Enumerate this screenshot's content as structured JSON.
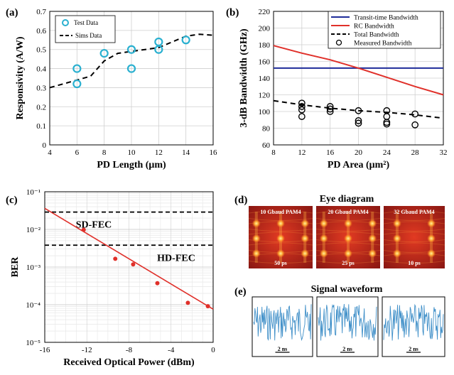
{
  "panels": {
    "a": "(a)",
    "b": "(b)",
    "c": "(c)",
    "d": "(d)",
    "e": "(e)"
  },
  "eye": {
    "title": "Eye diagram",
    "frames": [
      {
        "label": "10 Gbaud PAM4",
        "time": "50 ps",
        "eyes": 3
      },
      {
        "label": "20 Gbaud PAM4",
        "time": "25 ps",
        "eyes": 3
      },
      {
        "label": "32 Gbaud PAM4",
        "time": "10 ps",
        "eyes": 2
      }
    ]
  },
  "waveform": {
    "title": "Signal waveform",
    "frames": [
      {
        "time": "2 ns"
      },
      {
        "time": "2 ns"
      },
      {
        "time": "2 ns"
      }
    ]
  },
  "colors": {
    "test_marker": "#2ab0d0",
    "transit": "#1f2d9a",
    "rc": "#e0302a",
    "ber_line": "#e0302a",
    "wave": "#3f8fc8",
    "eye_bg": "#b3241c",
    "eye_hot": "#ffd24a"
  },
  "chart_data": [
    {
      "id": "a",
      "type": "scatter",
      "xlabel": "PD Length (μm)",
      "ylabel": "Responsivity (A/W)",
      "xlim": [
        4,
        16
      ],
      "ylim": [
        0,
        0.7
      ],
      "xticks": [
        4,
        6,
        8,
        10,
        12,
        14,
        16
      ],
      "yticks": [
        0,
        0.1,
        0.2,
        0.3,
        0.4,
        0.5,
        0.6,
        0.7
      ],
      "grid": true,
      "legend_position": "top-left",
      "series": [
        {
          "name": "Test Data",
          "style": "open-circle",
          "x": [
            6,
            6,
            8,
            10,
            10,
            12,
            12,
            14
          ],
          "y": [
            0.4,
            0.32,
            0.48,
            0.5,
            0.4,
            0.54,
            0.5,
            0.55
          ]
        },
        {
          "name": "Sims Data",
          "style": "dashed-line",
          "x": [
            4,
            5,
            6,
            7,
            8,
            9,
            10,
            11,
            12,
            13,
            14,
            15,
            16
          ],
          "y": [
            0.3,
            0.32,
            0.34,
            0.36,
            0.44,
            0.48,
            0.49,
            0.5,
            0.51,
            0.54,
            0.57,
            0.58,
            0.575
          ]
        }
      ]
    },
    {
      "id": "b",
      "type": "line",
      "xlabel": "PD Area (μm²)",
      "ylabel": "3-dB Bandwidth (GHz)",
      "xlim": [
        8,
        32
      ],
      "ylim": [
        60,
        220
      ],
      "xticks": [
        8,
        12,
        16,
        20,
        24,
        28,
        32
      ],
      "yticks": [
        60,
        80,
        100,
        120,
        140,
        160,
        180,
        200,
        220
      ],
      "grid": true,
      "legend_position": "top-right",
      "series": [
        {
          "name": "Transit-time Bandwidth",
          "style": "solid",
          "x": [
            8,
            32
          ],
          "y": [
            152,
            152
          ]
        },
        {
          "name": "RC Bandwidth",
          "style": "solid",
          "x": [
            8,
            12,
            16,
            20,
            24,
            28,
            32
          ],
          "y": [
            179,
            170,
            162,
            152,
            141,
            130,
            120
          ]
        },
        {
          "name": "Total Bandwidth",
          "style": "dashed",
          "x": [
            8,
            12,
            16,
            20,
            24,
            28,
            32
          ],
          "y": [
            113,
            108,
            104,
            101,
            99,
            96,
            92
          ]
        },
        {
          "name": "Measured Bandwidth",
          "style": "open-circle",
          "x": [
            12,
            12,
            12,
            12,
            16,
            16,
            16,
            20,
            20,
            20,
            24,
            24,
            24,
            24,
            28,
            28
          ],
          "y": [
            110,
            106,
            102,
            94,
            106,
            103,
            100,
            101,
            89,
            86,
            101,
            94,
            87,
            85,
            97,
            84
          ]
        }
      ]
    },
    {
      "id": "c",
      "type": "scatter",
      "xlabel": "Received Optical Power (dBm)",
      "ylabel": "BER",
      "xlim": [
        -16,
        0
      ],
      "xticks": [
        -16,
        -12,
        -8,
        -4,
        0
      ],
      "y_scale": "log",
      "ylim_exp": [
        -5,
        -1
      ],
      "ytick_labels": [
        "10⁻¹",
        "10⁻²",
        "10⁻³",
        "10⁻⁴",
        "10⁻⁵"
      ],
      "grid": true,
      "thresholds": [
        {
          "name": "SD-FEC",
          "log10_ber": -1.54
        },
        {
          "name": "HD-FEC",
          "log10_ber": -2.42
        }
      ],
      "series": [
        {
          "name": "measured",
          "style": "dot",
          "x": [
            -12.3,
            -9.3,
            -7.6,
            -5.3,
            -2.4,
            -0.5
          ],
          "log10_ber": [
            -2.01,
            -2.78,
            -2.93,
            -3.43,
            -3.95,
            -4.04
          ]
        },
        {
          "name": "fit",
          "style": "solid",
          "x": [
            -16,
            0
          ],
          "log10_ber": [
            -1.44,
            -4.12
          ]
        }
      ]
    }
  ]
}
